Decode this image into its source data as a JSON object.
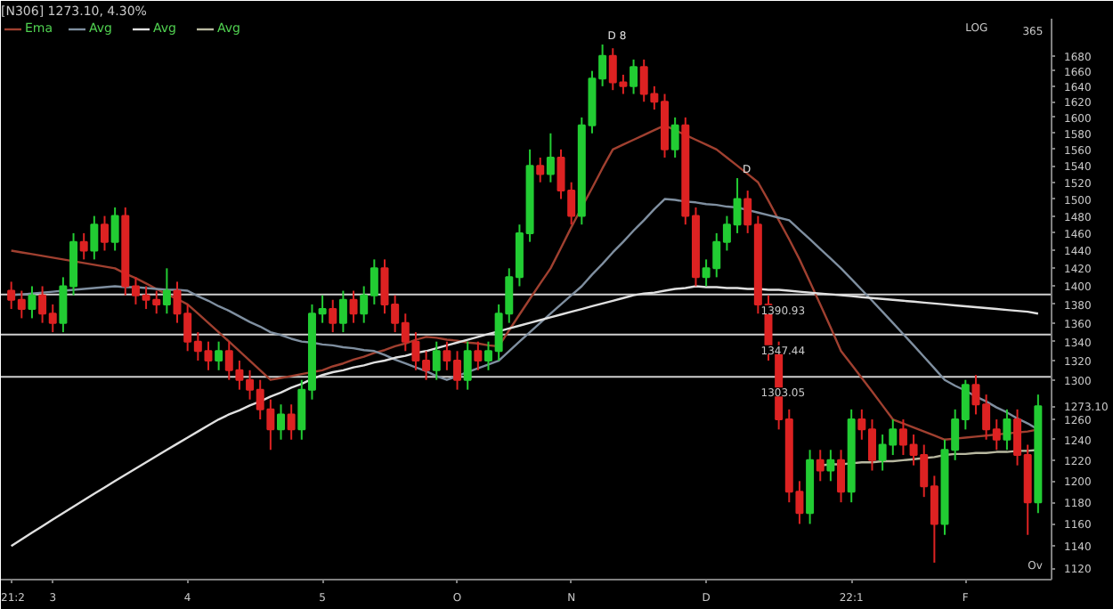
{
  "chart_data": {
    "type": "candlestick",
    "title": "[N306] 1273.10, 4.30%",
    "log": true,
    "grid": false,
    "legend": "top left",
    "categories": [
      "21:2",
      null,
      null,
      null,
      "3",
      null,
      null,
      null,
      null,
      null,
      null,
      null,
      null,
      null,
      null,
      null,
      null,
      "4",
      null,
      null,
      null,
      null,
      null,
      null,
      null,
      null,
      null,
      null,
      null,
      null,
      "5",
      null,
      null,
      null,
      null,
      null,
      null,
      null,
      null,
      null,
      null,
      null,
      null,
      "O",
      null,
      null,
      null,
      null,
      null,
      null,
      null,
      null,
      null,
      null,
      "N",
      null,
      null,
      null,
      null,
      null,
      null,
      null,
      null,
      null,
      null,
      null,
      null,
      "D",
      null,
      null,
      null,
      null,
      null,
      null,
      null,
      null,
      null,
      null,
      null,
      null,
      null,
      "22:1",
      null,
      null,
      null,
      null,
      null,
      null,
      null,
      null,
      null,
      null,
      "F",
      null,
      null,
      null,
      null,
      null,
      null,
      null
    ],
    "ohlc": [
      [
        1395,
        1405,
        1375,
        1385
      ],
      [
        1385,
        1395,
        1365,
        1375
      ],
      [
        1375,
        1400,
        1365,
        1390
      ],
      [
        1390,
        1400,
        1360,
        1370
      ],
      [
        1370,
        1380,
        1350,
        1360
      ],
      [
        1360,
        1410,
        1350,
        1400
      ],
      [
        1400,
        1460,
        1390,
        1450
      ],
      [
        1450,
        1460,
        1430,
        1440
      ],
      [
        1440,
        1480,
        1430,
        1470
      ],
      [
        1470,
        1480,
        1440,
        1450
      ],
      [
        1450,
        1490,
        1440,
        1480
      ],
      [
        1480,
        1490,
        1390,
        1400
      ],
      [
        1400,
        1410,
        1380,
        1390
      ],
      [
        1390,
        1400,
        1375,
        1385
      ],
      [
        1385,
        1395,
        1370,
        1380
      ],
      [
        1380,
        1420,
        1370,
        1395
      ],
      [
        1395,
        1405,
        1360,
        1370
      ],
      [
        1370,
        1380,
        1330,
        1340
      ],
      [
        1340,
        1350,
        1320,
        1330
      ],
      [
        1330,
        1340,
        1310,
        1320
      ],
      [
        1320,
        1340,
        1310,
        1330
      ],
      [
        1330,
        1340,
        1300,
        1310
      ],
      [
        1310,
        1320,
        1290,
        1300
      ],
      [
        1300,
        1310,
        1280,
        1290
      ],
      [
        1290,
        1300,
        1260,
        1270
      ],
      [
        1270,
        1280,
        1230,
        1250
      ],
      [
        1250,
        1275,
        1240,
        1265
      ],
      [
        1265,
        1275,
        1240,
        1250
      ],
      [
        1250,
        1300,
        1240,
        1290
      ],
      [
        1290,
        1380,
        1280,
        1370
      ],
      [
        1370,
        1390,
        1360,
        1375
      ],
      [
        1375,
        1385,
        1350,
        1360
      ],
      [
        1360,
        1395,
        1350,
        1385
      ],
      [
        1385,
        1395,
        1360,
        1370
      ],
      [
        1370,
        1400,
        1360,
        1390
      ],
      [
        1390,
        1430,
        1380,
        1420
      ],
      [
        1420,
        1430,
        1370,
        1380
      ],
      [
        1380,
        1390,
        1350,
        1360
      ],
      [
        1360,
        1370,
        1330,
        1340
      ],
      [
        1340,
        1350,
        1310,
        1320
      ],
      [
        1320,
        1330,
        1300,
        1310
      ],
      [
        1310,
        1340,
        1300,
        1330
      ],
      [
        1330,
        1340,
        1310,
        1320
      ],
      [
        1320,
        1330,
        1290,
        1300
      ],
      [
        1300,
        1340,
        1290,
        1330
      ],
      [
        1330,
        1340,
        1310,
        1320
      ],
      [
        1320,
        1340,
        1310,
        1330
      ],
      [
        1330,
        1380,
        1320,
        1370
      ],
      [
        1370,
        1420,
        1360,
        1410
      ],
      [
        1410,
        1470,
        1400,
        1460
      ],
      [
        1460,
        1560,
        1450,
        1540
      ],
      [
        1540,
        1550,
        1520,
        1530
      ],
      [
        1530,
        1580,
        1520,
        1550
      ],
      [
        1550,
        1560,
        1500,
        1510
      ],
      [
        1510,
        1520,
        1470,
        1480
      ],
      [
        1480,
        1600,
        1470,
        1590
      ],
      [
        1590,
        1660,
        1580,
        1650
      ],
      [
        1650,
        1695,
        1640,
        1680
      ],
      [
        1680,
        1690,
        1635,
        1645
      ],
      [
        1645,
        1655,
        1630,
        1640
      ],
      [
        1640,
        1675,
        1630,
        1665
      ],
      [
        1665,
        1675,
        1620,
        1630
      ],
      [
        1630,
        1640,
        1610,
        1620
      ],
      [
        1620,
        1630,
        1550,
        1560
      ],
      [
        1560,
        1600,
        1550,
        1590
      ],
      [
        1590,
        1600,
        1470,
        1480
      ],
      [
        1480,
        1490,
        1400,
        1410
      ],
      [
        1410,
        1430,
        1400,
        1420
      ],
      [
        1420,
        1460,
        1410,
        1450
      ],
      [
        1450,
        1480,
        1440,
        1470
      ],
      [
        1470,
        1525,
        1460,
        1500
      ],
      [
        1500,
        1510,
        1460,
        1470
      ],
      [
        1470,
        1480,
        1370,
        1380
      ],
      [
        1380,
        1390,
        1320,
        1330
      ],
      [
        1330,
        1340,
        1250,
        1260
      ],
      [
        1260,
        1270,
        1180,
        1190
      ],
      [
        1190,
        1200,
        1160,
        1170
      ],
      [
        1170,
        1230,
        1160,
        1220
      ],
      [
        1220,
        1230,
        1200,
        1210
      ],
      [
        1210,
        1230,
        1200,
        1220
      ],
      [
        1220,
        1230,
        1180,
        1190
      ],
      [
        1190,
        1270,
        1180,
        1260
      ],
      [
        1260,
        1270,
        1240,
        1250
      ],
      [
        1250,
        1260,
        1210,
        1220
      ],
      [
        1220,
        1245,
        1210,
        1235
      ],
      [
        1235,
        1260,
        1225,
        1250
      ],
      [
        1250,
        1260,
        1225,
        1235
      ],
      [
        1235,
        1245,
        1215,
        1225
      ],
      [
        1225,
        1235,
        1185,
        1195
      ],
      [
        1195,
        1205,
        1125,
        1160
      ],
      [
        1160,
        1240,
        1150,
        1230
      ],
      [
        1230,
        1270,
        1220,
        1260
      ],
      [
        1260,
        1300,
        1250,
        1295
      ],
      [
        1295,
        1305,
        1265,
        1275
      ],
      [
        1275,
        1285,
        1240,
        1250
      ],
      [
        1250,
        1260,
        1230,
        1240
      ],
      [
        1240,
        1270,
        1230,
        1260
      ],
      [
        1260,
        1270,
        1215,
        1225
      ],
      [
        1225,
        1235,
        1150,
        1180
      ],
      [
        1180,
        1285,
        1170,
        1273.1
      ]
    ],
    "series": [
      {
        "name": "Ema",
        "type": "line",
        "color": "#a04030",
        "values": [
          1440,
          1438,
          1436,
          1434,
          1432,
          1430,
          1428,
          1426,
          1424,
          1422,
          1420,
          1414,
          1409,
          1403,
          1397,
          1391,
          1386,
          1380,
          1370,
          1360,
          1350,
          1340,
          1330,
          1320,
          1310,
          1300,
          1302,
          1304,
          1306,
          1308,
          1310,
          1314,
          1317,
          1321,
          1324,
          1328,
          1331,
          1335,
          1338,
          1342,
          1345,
          1344,
          1342,
          1341,
          1339,
          1338,
          1336,
          1335,
          1352,
          1369,
          1386,
          1403,
          1420,
          1443,
          1467,
          1490,
          1513,
          1537,
          1560,
          1566,
          1572,
          1578,
          1584,
          1590,
          1584,
          1578,
          1572,
          1566,
          1560,
          1550,
          1540,
          1530,
          1520,
          1498,
          1475,
          1453,
          1430,
          1405,
          1380,
          1355,
          1330,
          1316,
          1302,
          1288,
          1274,
          1260,
          1256,
          1252,
          1248,
          1244,
          1240,
          1241,
          1242,
          1243,
          1244,
          1245,
          1246,
          1247,
          1248,
          1250
        ]
      },
      {
        "name": "Avg",
        "type": "line",
        "color": "#7f8fa0",
        "values": [
          1390,
          1391,
          1392,
          1393,
          1394,
          1395,
          1396,
          1397,
          1398,
          1399,
          1400,
          1399,
          1399,
          1398,
          1397,
          1396,
          1396,
          1395,
          1389,
          1384,
          1378,
          1373,
          1367,
          1361,
          1356,
          1350,
          1347,
          1343,
          1340,
          1339,
          1337,
          1336,
          1334,
          1333,
          1331,
          1330,
          1326,
          1321,
          1317,
          1313,
          1309,
          1304,
          1300,
          1304,
          1308,
          1312,
          1316,
          1320,
          1330,
          1340,
          1350,
          1360,
          1370,
          1380,
          1390,
          1400,
          1413,
          1425,
          1438,
          1450,
          1463,
          1475,
          1488,
          1500,
          1499,
          1497,
          1496,
          1494,
          1493,
          1491,
          1490,
          1487,
          1484,
          1481,
          1478,
          1475,
          1464,
          1453,
          1442,
          1431,
          1420,
          1408,
          1396,
          1384,
          1372,
          1360,
          1348,
          1336,
          1324,
          1312,
          1300,
          1294,
          1289,
          1283,
          1278,
          1272,
          1267,
          1261,
          1256,
          1250
        ]
      },
      {
        "name": "Avg",
        "type": "line",
        "color": "#e0e0e0",
        "values": [
          1140,
          1146,
          1152,
          1158,
          1164,
          1170,
          1176,
          1182,
          1188,
          1194,
          1200,
          1206,
          1212,
          1218,
          1224,
          1230,
          1236,
          1242,
          1248,
          1254,
          1260,
          1265,
          1269,
          1274,
          1278,
          1283,
          1287,
          1292,
          1296,
          1301,
          1305,
          1308,
          1310,
          1313,
          1315,
          1318,
          1320,
          1323,
          1325,
          1328,
          1330,
          1333,
          1336,
          1339,
          1342,
          1345,
          1348,
          1351,
          1354,
          1357,
          1360,
          1363,
          1366,
          1369,
          1372,
          1375,
          1378,
          1381,
          1384,
          1387,
          1390,
          1392,
          1393,
          1395,
          1397,
          1398,
          1400,
          1399,
          1399,
          1398,
          1398,
          1397,
          1397,
          1396,
          1396,
          1395,
          1394,
          1393,
          1392,
          1391,
          1390,
          1389,
          1388,
          1387,
          1386,
          1385,
          1384,
          1383,
          1382,
          1381,
          1380,
          1379,
          1378,
          1377,
          1376,
          1375,
          1374,
          1373,
          1372,
          1370
        ]
      },
      {
        "name": "Avg",
        "type": "line",
        "color": "#b8b8a0",
        "values": [
          null,
          null,
          null,
          null,
          null,
          null,
          null,
          null,
          null,
          null,
          null,
          null,
          null,
          null,
          null,
          null,
          null,
          null,
          null,
          null,
          null,
          null,
          null,
          null,
          null,
          null,
          null,
          null,
          null,
          null,
          null,
          null,
          null,
          null,
          null,
          null,
          null,
          null,
          null,
          null,
          null,
          null,
          null,
          null,
          null,
          null,
          null,
          null,
          null,
          null,
          null,
          null,
          null,
          null,
          null,
          null,
          null,
          null,
          null,
          null,
          null,
          null,
          null,
          null,
          null,
          null,
          null,
          null,
          null,
          null,
          null,
          null,
          null,
          null,
          null,
          null,
          null,
          null,
          1215,
          1216,
          1216,
          1217,
          1218,
          1218,
          1219,
          1219,
          1220,
          1221,
          1222,
          1223,
          1225,
          1226,
          1226,
          1227,
          1227,
          1228,
          1228,
          1229,
          1229,
          1230
        ]
      }
    ],
    "ylim": [
      1110,
      1730
    ],
    "yticks": [
      1120,
      1140,
      1160,
      1180,
      1200,
      1220,
      1240,
      1260,
      {
        "value": 1273.1,
        "label": "1273.10"
      },
      1300,
      1320,
      1340,
      1360,
      1380,
      1400,
      1420,
      1440,
      1460,
      1480,
      1500,
      1520,
      1540,
      1560,
      1580,
      1600,
      1620,
      1640,
      1660,
      1680
    ],
    "ref_lines": [
      {
        "axis": "y",
        "value": 1390.93,
        "label": "1390.93",
        "color": "#d0d0d0"
      },
      {
        "axis": "y",
        "value": 1347.44,
        "label": "1347.44",
        "color": "#d0d0d0"
      },
      {
        "axis": "y",
        "value": 1303.05,
        "label": "1303.05",
        "color": "#d0d0d0"
      }
    ],
    "annotations": [
      {
        "text": "D 8",
        "y": 1695
      },
      {
        "text": "D",
        "y": 1525
      },
      "LOG",
      "365",
      "Ov"
    ]
  }
}
